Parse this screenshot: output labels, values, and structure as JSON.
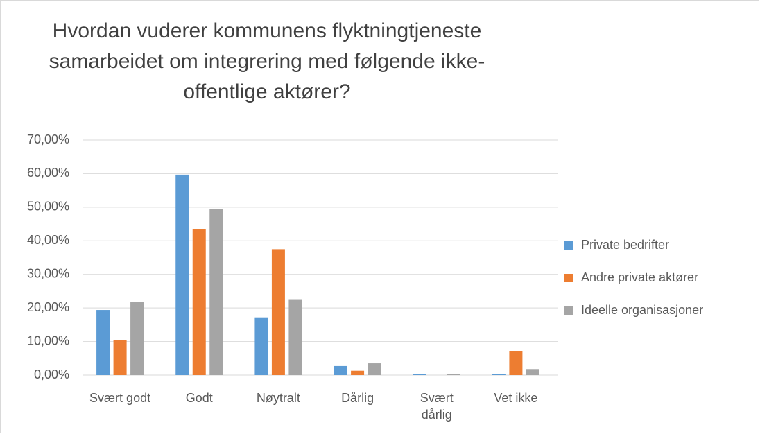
{
  "chart_data": {
    "type": "bar",
    "title": [
      "Hvordan vuderer kommunens flyktningtjeneste",
      "samarbeidet om integrering med følgende ikke-",
      "offentlige aktører?"
    ],
    "categories": [
      "Svært godt",
      "Godt",
      "Nøytralt",
      "Dårlig",
      "Svært dårlig",
      "Vet ikke"
    ],
    "series": [
      {
        "name": "Private bedrifter",
        "color": "#5b9bd5",
        "values": [
          19.4,
          59.7,
          17.2,
          2.7,
          0.4,
          0.4
        ]
      },
      {
        "name": "Andre private aktører",
        "color": "#ed7d31",
        "values": [
          10.4,
          43.4,
          37.5,
          1.3,
          0,
          7.1
        ]
      },
      {
        "name": "Ideelle organisasjoner",
        "color": "#a5a5a5",
        "values": [
          21.8,
          49.5,
          22.6,
          3.5,
          0.4,
          1.8
        ]
      }
    ],
    "ylim": [
      0,
      70
    ],
    "yticks": [
      {
        "value": 0,
        "label": "0,00%"
      },
      {
        "value": 10,
        "label": "10,00%"
      },
      {
        "value": 20,
        "label": "20,00%"
      },
      {
        "value": 30,
        "label": "30,00%"
      },
      {
        "value": 40,
        "label": "40,00%"
      },
      {
        "value": 50,
        "label": "50,00%"
      },
      {
        "value": 60,
        "label": "60,00%"
      },
      {
        "value": 70,
        "label": "70,00%"
      }
    ],
    "grid": true,
    "legend": "right"
  }
}
